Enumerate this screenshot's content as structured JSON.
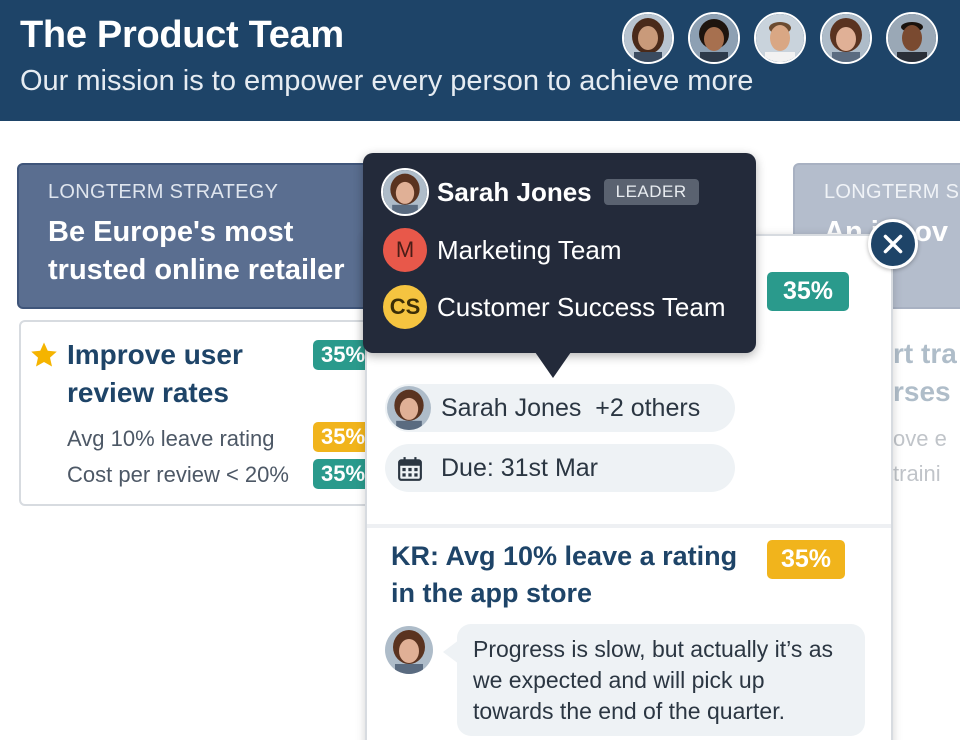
{
  "header": {
    "title": "The Product Team",
    "mission": "Our mission is to empower every person to achieve more",
    "members": [
      {
        "icon": "avatar-woman-1",
        "skin": "#c99a7a",
        "hair": "#4a2a1a"
      },
      {
        "icon": "avatar-woman-2",
        "skin": "#a7704f",
        "hair": "#1e140e"
      },
      {
        "icon": "avatar-man-1",
        "skin": "#d9a784",
        "hair": "#6b4a2f"
      },
      {
        "icon": "avatar-woman-3",
        "skin": "#e0b096",
        "hair": "#5a3320"
      },
      {
        "icon": "avatar-man-2",
        "skin": "#7a4a30",
        "hair": "#1a120c"
      }
    ]
  },
  "strategy_left": {
    "label": "LONGTERM STRATEGY",
    "title": "Be Europe's most trusted online retailer"
  },
  "strategy_right": {
    "label": "LONGTERM S",
    "title": "An innov"
  },
  "objective": {
    "title": "Improve user review rates",
    "progress": "35%",
    "key_results": [
      {
        "label": "Avg 10% leave rating",
        "progress": "35%",
        "color": "#f1b41c"
      },
      {
        "label": "Cost per review < 20%",
        "progress": "35%",
        "color": "#2a9a8c"
      }
    ]
  },
  "objective_right": {
    "title_line1": "rt tra",
    "title_line2": "rses",
    "line1": "ove e",
    "line2": "traini"
  },
  "tooltip": {
    "owner_name": "Sarah Jones",
    "owner_role": "LEADER",
    "teams": [
      {
        "initials": "M",
        "name": "Marketing Team"
      },
      {
        "initials": "CS",
        "name": "Customer Success Team"
      }
    ]
  },
  "panel": {
    "top_progress": "35%",
    "owners_text": "Sarah Jones  +2 others",
    "due_text": "Due: 31st Mar",
    "kr_title": "KR: Avg 10% leave a rating in the app store",
    "kr_progress": "35%",
    "comment": "Progress is slow, but actually it’s as we expected and will pick up towards the end of the quarter."
  },
  "colors": {
    "header_bg": "#1e4468",
    "badge_green": "#2a9a8c",
    "badge_yellow": "#f1b41c",
    "tooltip_bg": "#232a3a"
  }
}
